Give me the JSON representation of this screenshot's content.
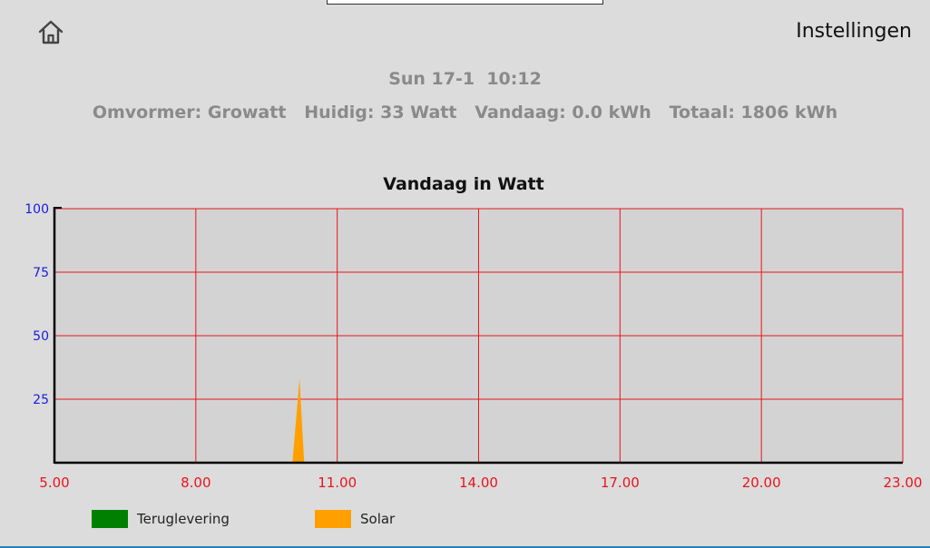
{
  "header": {
    "home_icon": "home-icon",
    "settings_label": "Instellingen"
  },
  "status": {
    "datetime": "Sun 17-1  10:12",
    "summary": "Omvormer: Growatt   Huidig: 33 Watt   Vandaag: 0.0 kWh   Totaal: 1806 kWh"
  },
  "colors": {
    "background": "#dcdcdc",
    "plot_background": "#d3d3d3",
    "grid": "#e8141c",
    "y_ticks": "#1a1ae0",
    "x_ticks": "#e8141c",
    "teruglevering": "#008000",
    "solar": "#ffa000"
  },
  "chart_data": {
    "type": "area",
    "title": "Vandaag in Watt",
    "xlabel": "",
    "ylabel": "",
    "x_ticks": [
      "5.00",
      "8.00",
      "11.00",
      "14.00",
      "17.00",
      "20.00",
      "23.00"
    ],
    "y_ticks": [
      "25",
      "50",
      "75",
      "100"
    ],
    "xlim": [
      5,
      23
    ],
    "ylim": [
      0,
      100
    ],
    "grid": true,
    "legend_position": "bottom-left",
    "series": [
      {
        "name": "Teruglevering",
        "color": "#008000",
        "points": []
      },
      {
        "name": "Solar",
        "color": "#ffa000",
        "points": [
          [
            10.05,
            0
          ],
          [
            10.2,
            33
          ],
          [
            10.3,
            0
          ]
        ]
      }
    ]
  }
}
